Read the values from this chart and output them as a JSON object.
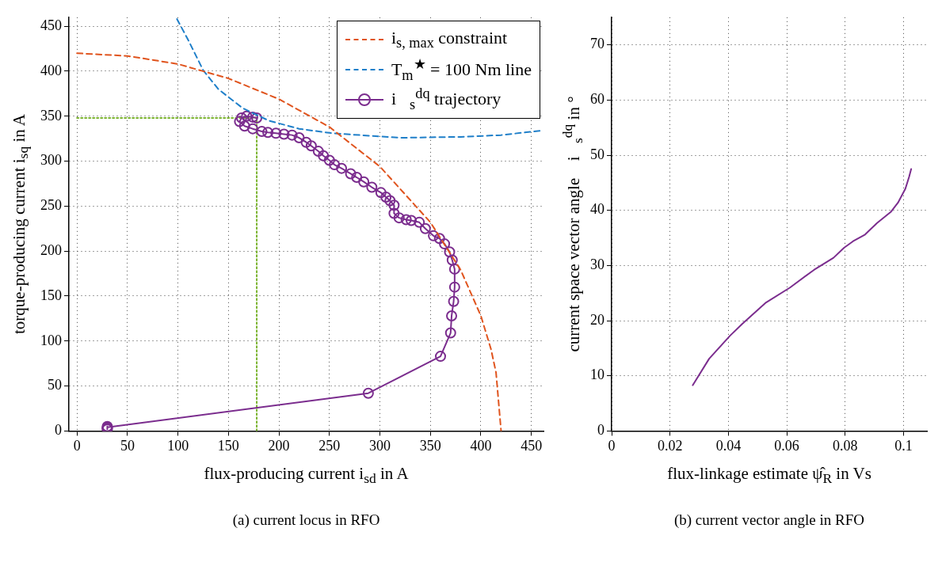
{
  "chart_data": [
    {
      "type": "line",
      "title": "(a) current locus in RFO",
      "xlabel": "flux-producing current i$_{sd}$ in A",
      "ylabel": "torque-producing current i$_{sq}$ in A",
      "xlim": [
        -8,
        462
      ],
      "ylim": [
        0,
        460
      ],
      "xticks": [
        0,
        50,
        100,
        150,
        200,
        250,
        300,
        350,
        400,
        450
      ],
      "yticks": [
        0,
        50,
        100,
        150,
        200,
        250,
        300,
        350,
        400,
        450
      ],
      "grid": true,
      "legend": "top right",
      "series": [
        {
          "name": "i$_{s, max}$ constraint",
          "color": "#e0541e",
          "line_style": "dashed",
          "marker": "none",
          "x": [
            0,
            50,
            100,
            150,
            200,
            250,
            300,
            350,
            380,
            400,
            410,
            415,
            420
          ],
          "values": [
            420,
            417,
            408,
            392,
            369,
            338,
            294,
            232,
            179,
            128,
            91,
            65,
            0
          ]
        },
        {
          "name": "T$_{m}$$^{★}$ = 100 Nm line",
          "color": "#1f7fc9",
          "line_style": "dashed",
          "marker": "none",
          "x": [
            99,
            110,
            125,
            140,
            164,
            190,
            220,
            253,
            320,
            380,
            420,
            460
          ],
          "values": [
            458,
            435,
            401,
            380,
            359,
            345,
            336,
            331,
            326,
            327,
            329,
            334
          ]
        },
        {
          "name": "i⃗$_{s}$$^{dq}$ trajectory",
          "color": "#7b2d8e",
          "line_style": "solid",
          "marker": "circle",
          "x": [
            30,
            30,
            30,
            30,
            288.5,
            360,
            370,
            371,
            373,
            374,
            374,
            371.6,
            369,
            364,
            359,
            353,
            345,
            339,
            331,
            326,
            319,
            314,
            314,
            310,
            306,
            301,
            292,
            284,
            277,
            271,
            262,
            255,
            250,
            244,
            239,
            232,
            227,
            220,
            213,
            205,
            197,
            189,
            183,
            174,
            166,
            161,
            163,
            168,
            174,
            178
          ],
          "values": [
            2,
            3,
            5,
            4,
            42,
            83,
            109,
            128,
            144,
            160,
            180,
            190,
            199,
            208,
            214,
            217,
            225,
            232,
            234,
            235,
            237,
            242,
            251,
            256,
            260,
            265,
            271,
            277,
            282,
            286,
            292,
            296,
            301,
            306,
            311,
            317,
            321,
            326,
            329,
            330,
            331,
            332,
            333,
            336,
            339,
            344,
            348,
            350,
            349,
            348
          ]
        },
        {
          "color": "#7ab32e",
          "line_style": "dotted",
          "marker": "none",
          "x": [
            0,
            178,
            178
          ],
          "values": [
            348,
            348,
            0
          ]
        }
      ]
    },
    {
      "type": "line",
      "title": "(b) current vector angle in RFO",
      "xlabel": "flux-linkage estimate ψ̂$_{R}$ in Vs",
      "ylabel": "current space vector angle ∠i⃗$_{s}$$^{dq}$ in °",
      "xlim": [
        0,
        0.108
      ],
      "ylim": [
        0,
        75
      ],
      "xticks": [
        0,
        0.02,
        0.04,
        0.06,
        0.08,
        0.1
      ],
      "yticks": [
        0,
        10,
        20,
        30,
        40,
        50,
        60,
        70
      ],
      "grid": true,
      "series": [
        {
          "color": "#7b2d8e",
          "line_style": "solid",
          "marker": "none",
          "x": [
            0.0278,
            0.0334,
            0.0406,
            0.0447,
            0.0529,
            0.0611,
            0.0693,
            0.076,
            0.0796,
            0.0827,
            0.0868,
            0.0909,
            0.0956,
            0.0981,
            0.1006,
            0.1019,
            0.1026
          ],
          "values": [
            8.3,
            13.1,
            17.3,
            19.4,
            23.3,
            26.0,
            29.2,
            31.4,
            33.2,
            34.4,
            35.6,
            37.7,
            39.7,
            41.4,
            43.9,
            46.1,
            47.5
          ]
        }
      ]
    }
  ]
}
